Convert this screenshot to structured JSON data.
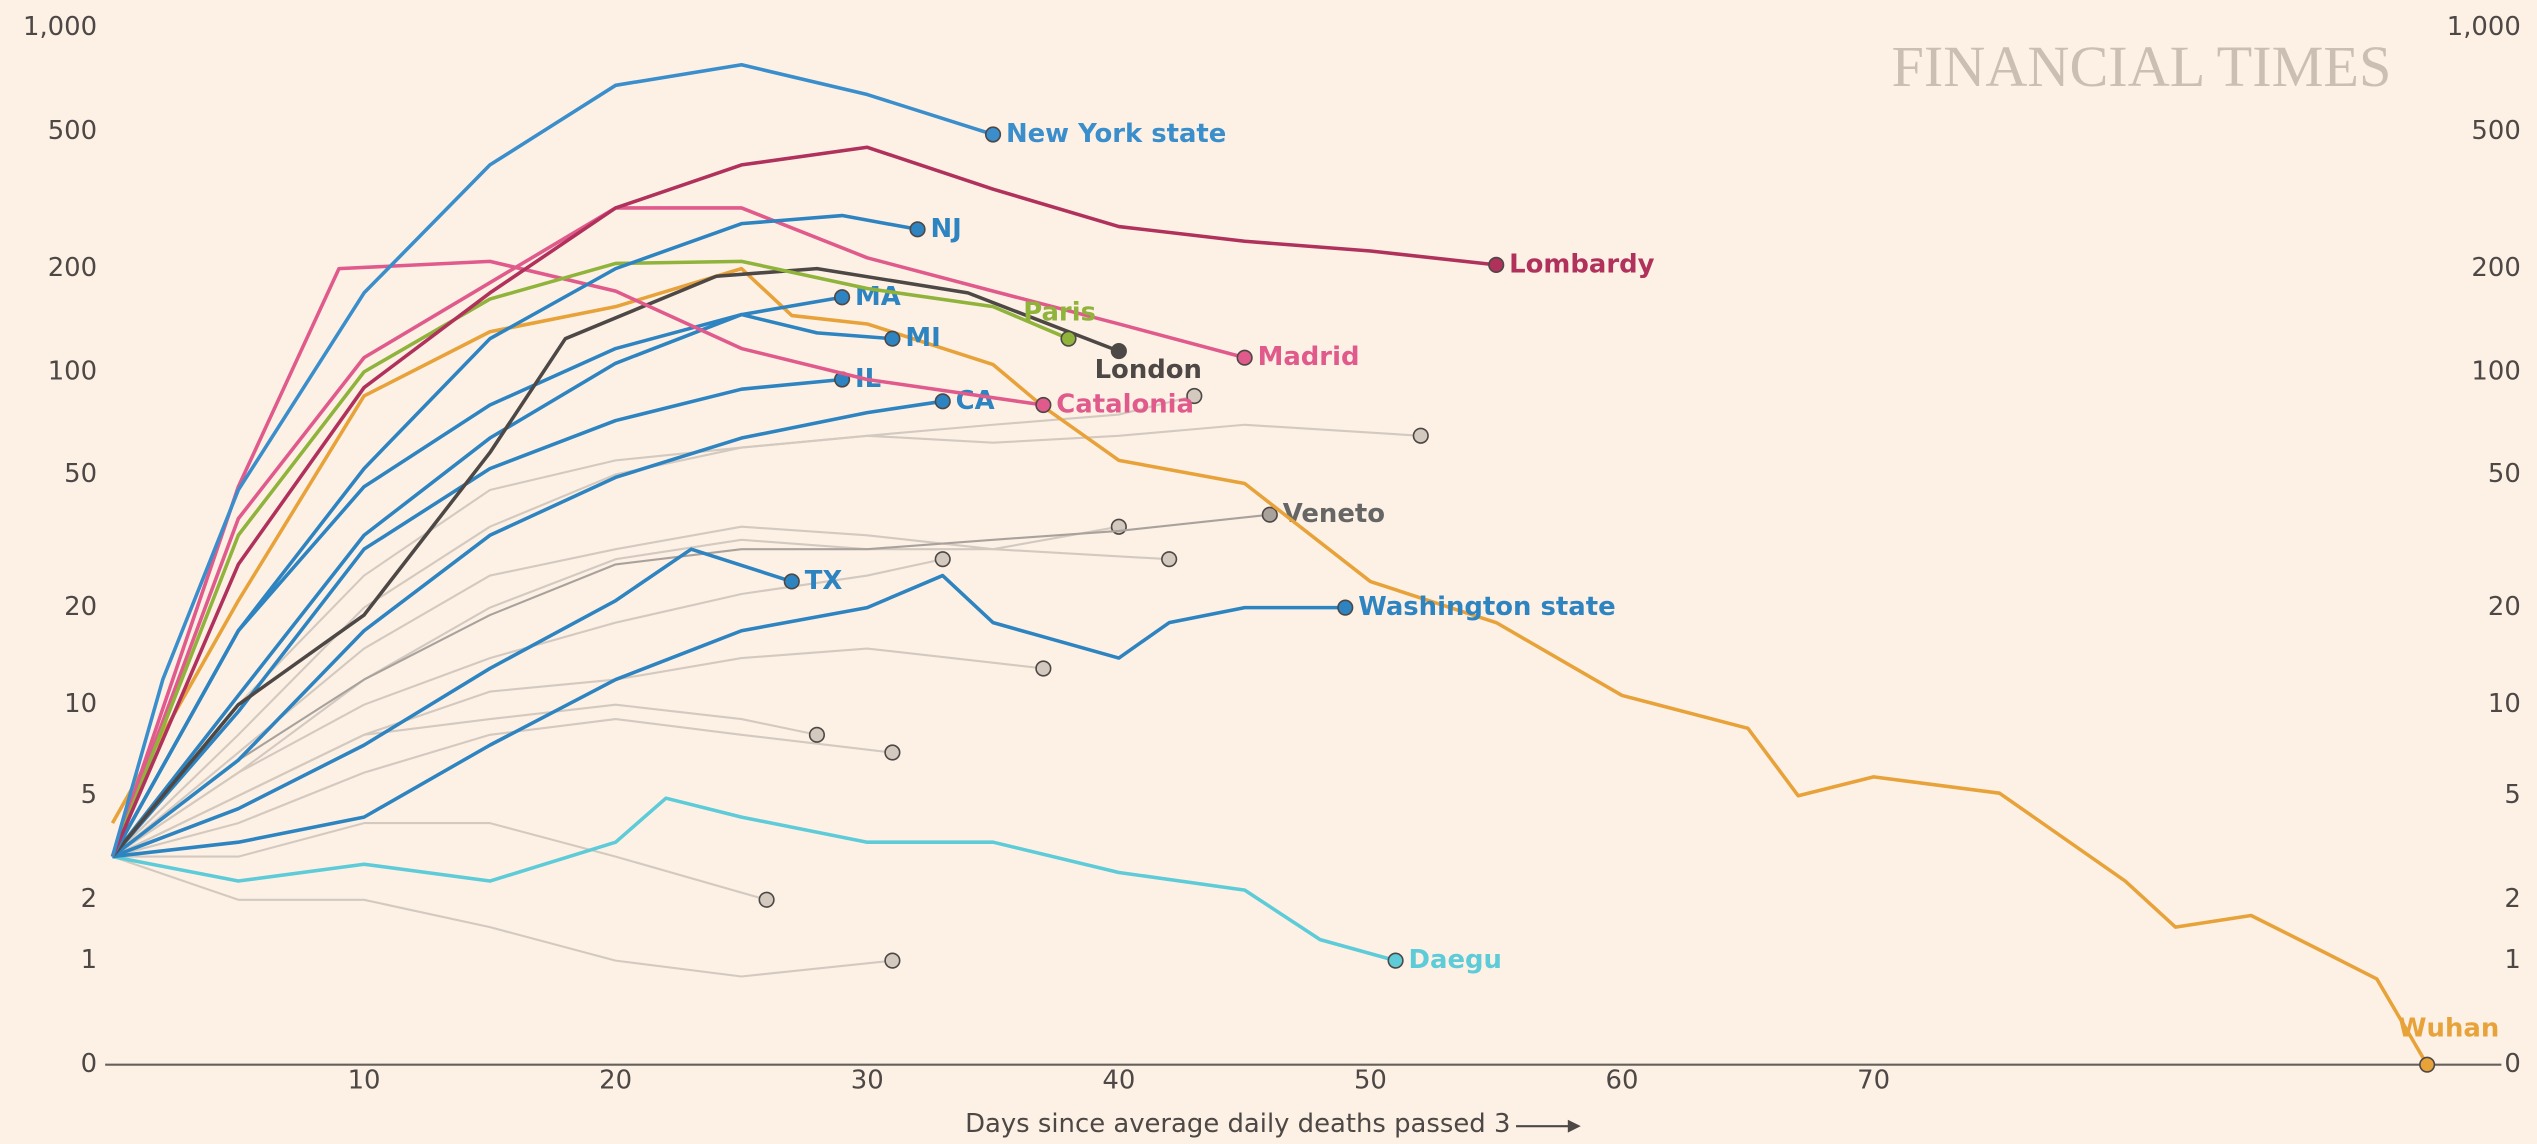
{
  "chart_data": {
    "type": "line",
    "brand": "FINANCIAL TIMES",
    "x_label": "Days since average daily deaths passed 3",
    "xlim": [
      0,
      95
    ],
    "xticks": [
      10,
      20,
      30,
      40,
      50,
      60,
      70
    ],
    "ylim": [
      0,
      1000
    ],
    "yscale": "log1p",
    "yticks": [
      0,
      1,
      2,
      5,
      10,
      20,
      50,
      100,
      200,
      500,
      {
        "value": 1000,
        "label": "1,000"
      }
    ],
    "grid": false,
    "series": [
      {
        "color": "#d3c9bf",
        "x": [
          0,
          5,
          10,
          15,
          20,
          25,
          30,
          35,
          40,
          43
        ],
        "values": [
          3,
          8,
          20,
          35,
          50,
          60,
          65,
          70,
          75,
          85
        ]
      },
      {
        "color": "#d3c9bf",
        "x": [
          0,
          5,
          10,
          15,
          20,
          25,
          30,
          35,
          40,
          45,
          52
        ],
        "values": [
          3,
          10,
          25,
          45,
          55,
          60,
          65,
          62,
          65,
          70,
          65
        ]
      },
      {
        "color": "#d3c9bf",
        "x": [
          0,
          5,
          10,
          15,
          20,
          25,
          30,
          33
        ],
        "values": [
          3,
          6,
          10,
          14,
          18,
          22,
          25,
          28
        ]
      },
      {
        "color": "#d3c9bf",
        "x": [
          0,
          5,
          10,
          15,
          20,
          25,
          30,
          37
        ],
        "values": [
          3,
          5,
          8,
          11,
          12,
          14,
          15,
          13
        ]
      },
      {
        "color": "#d3c9bf",
        "x": [
          0,
          5,
          10,
          15,
          20,
          25,
          31
        ],
        "values": [
          3,
          4,
          6,
          8,
          9,
          8,
          7
        ]
      },
      {
        "color": "#d3c9bf",
        "x": [
          0,
          5,
          10,
          15,
          20,
          26
        ],
        "values": [
          3,
          3,
          4,
          4,
          3,
          2
        ]
      },
      {
        "color": "#d3c9bf",
        "x": [
          0,
          5,
          10,
          15,
          20,
          25,
          31
        ],
        "values": [
          3,
          2,
          2,
          1.5,
          1,
          0.8,
          1
        ]
      },
      {
        "color": "#d3c9bf",
        "x": [
          0,
          5,
          10,
          15,
          20,
          25,
          30,
          35,
          42
        ],
        "values": [
          3,
          7,
          15,
          25,
          30,
          35,
          33,
          30,
          28
        ]
      },
      {
        "color": "#d3c9bf",
        "x": [
          0,
          5,
          10,
          15,
          20,
          25,
          28
        ],
        "values": [
          3,
          5,
          8,
          9,
          10,
          9,
          8
        ]
      },
      {
        "color": "#d3c9bf",
        "x": [
          0,
          5,
          10,
          15,
          20,
          25,
          30,
          35,
          40
        ],
        "values": [
          3,
          6,
          12,
          20,
          28,
          32,
          30,
          30,
          35
        ]
      },
      {
        "name": "Veneto",
        "color": "#a9a29c",
        "x": [
          0,
          5,
          10,
          15,
          20,
          25,
          30,
          35,
          40,
          46
        ],
        "values": [
          3,
          6.6,
          12,
          19,
          27,
          30,
          30,
          32,
          34,
          38
        ]
      },
      {
        "name": "Daegu",
        "color": "#5ecbd8",
        "x": [
          0,
          5,
          10,
          15,
          20,
          22,
          25,
          30,
          35,
          40,
          45,
          48,
          51
        ],
        "values": [
          3,
          2.4,
          2.8,
          2.4,
          3.4,
          4.9,
          4.2,
          3.4,
          3.4,
          2.6,
          2.2,
          1.3,
          1
        ]
      },
      {
        "name": "Wuhan",
        "color": "#e8a23a",
        "x": [
          0,
          5,
          10,
          15,
          20,
          25,
          27,
          30,
          35,
          37,
          40,
          45,
          50,
          55,
          60,
          65,
          67,
          70,
          75,
          80,
          82,
          85,
          88,
          90,
          92
        ],
        "values": [
          4,
          21,
          85,
          131,
          155,
          200,
          146,
          138,
          105,
          79,
          55,
          47,
          24,
          18,
          10.7,
          8.4,
          5,
          5.8,
          5.1,
          2.4,
          1.5,
          1.7,
          1.1,
          0.77,
          0
        ]
      },
      {
        "name": "TX",
        "color": "#2e84c0",
        "x": [
          0,
          5,
          10,
          15,
          20,
          23,
          27
        ],
        "values": [
          3,
          4.5,
          7.4,
          13,
          21,
          30,
          24
        ]
      },
      {
        "name": "Washington state",
        "color": "#2e84c0",
        "x": [
          0,
          5,
          10,
          15,
          20,
          25,
          30,
          33,
          35,
          40,
          42,
          45,
          49
        ],
        "values": [
          3,
          3.4,
          4.2,
          7.4,
          12,
          17,
          20,
          25,
          18,
          14,
          18,
          20,
          20
        ]
      },
      {
        "name": "CA",
        "color": "#2e84c0",
        "x": [
          0,
          5,
          10,
          15,
          20,
          25,
          30,
          33
        ],
        "values": [
          3,
          6.6,
          17,
          33,
          49,
          64,
          76,
          82
        ]
      },
      {
        "name": "IL",
        "color": "#2e84c0",
        "x": [
          0,
          5,
          10,
          15,
          20,
          25,
          29
        ],
        "values": [
          3,
          9.5,
          30,
          52,
          72,
          89,
          95
        ]
      },
      {
        "name": "MI",
        "color": "#2e84c0",
        "x": [
          0,
          5,
          10,
          15,
          20,
          25,
          28,
          31
        ],
        "values": [
          3,
          17,
          46,
          80,
          117,
          147,
          130,
          125
        ]
      },
      {
        "name": "MA",
        "color": "#2e84c0",
        "x": [
          0,
          5,
          10,
          15,
          20,
          25,
          29
        ],
        "values": [
          3,
          10.7,
          33,
          64,
          106,
          147,
          165
        ]
      },
      {
        "name": "London",
        "color": "#4d4845",
        "x": [
          0,
          5,
          10,
          15,
          18,
          24,
          28,
          34,
          40
        ],
        "values": [
          3,
          10,
          19,
          58,
          125,
          190,
          200,
          170,
          115
        ]
      },
      {
        "name": "Catalonia",
        "color": "#e05a8c",
        "x": [
          0,
          5,
          9,
          15,
          20,
          25,
          30,
          37
        ],
        "values": [
          3,
          46,
          200,
          210,
          172,
          117,
          95,
          80
        ]
      },
      {
        "name": "Madrid",
        "color": "#e05a8c",
        "x": [
          0,
          5,
          10,
          15,
          20,
          25,
          30,
          35,
          40,
          45
        ],
        "values": [
          3,
          37,
          110,
          182,
          300,
          300,
          215,
          172,
          138,
          110
        ]
      },
      {
        "name": "Paris",
        "color": "#8fb33b",
        "x": [
          0,
          5,
          10,
          15,
          20,
          25,
          30,
          35,
          38
        ],
        "values": [
          3,
          33,
          100,
          163,
          207,
          210,
          175,
          155,
          125
        ]
      },
      {
        "name": "NJ",
        "color": "#2e84c0",
        "x": [
          0,
          5,
          10,
          15,
          20,
          25,
          29,
          32
        ],
        "values": [
          3,
          17,
          52,
          125,
          200,
          270,
          285,
          260
        ]
      },
      {
        "name": "Lombardy",
        "color": "#b0315c",
        "x": [
          0,
          5,
          10,
          15,
          20,
          25,
          30,
          35,
          40,
          45,
          50,
          55
        ],
        "values": [
          3,
          27,
          90,
          170,
          300,
          400,
          450,
          340,
          265,
          240,
          225,
          205
        ]
      },
      {
        "name": "New York state",
        "color": "#3a8ecb",
        "x": [
          0,
          2,
          5,
          10,
          15,
          20,
          25,
          30,
          35
        ],
        "values": [
          3,
          12,
          45,
          170,
          400,
          680,
          780,
          640,
          490
        ]
      }
    ]
  }
}
